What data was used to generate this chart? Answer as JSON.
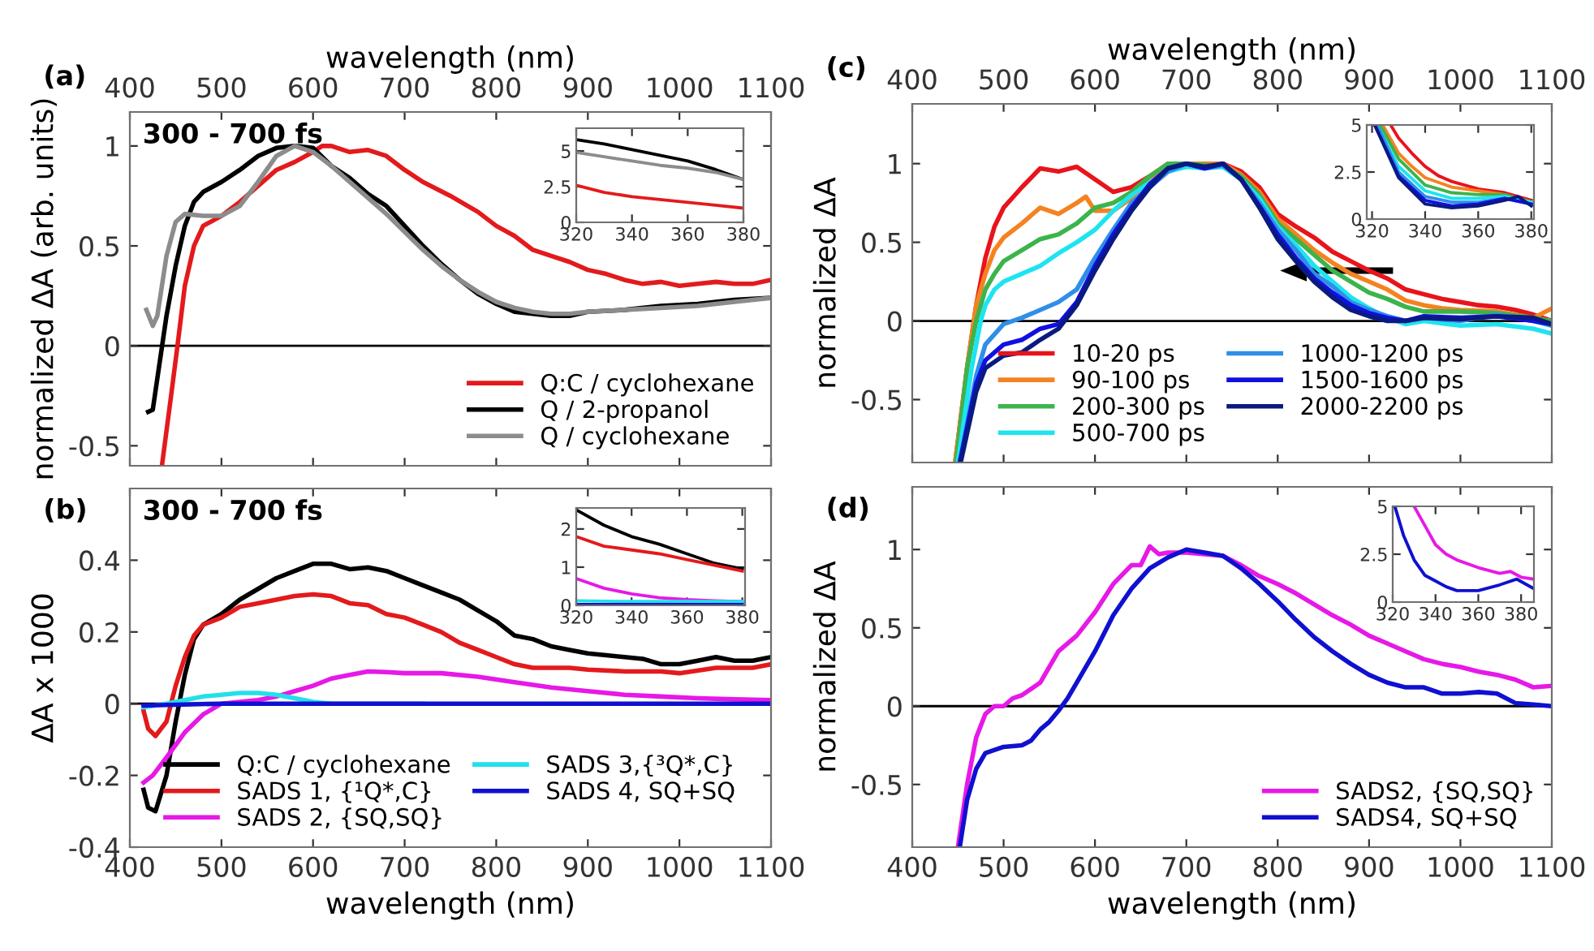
{
  "chart_data": [
    {
      "type": "line",
      "title": "(a)",
      "xlabel": "wavelength (nm)",
      "ylabel": "normalized ΔA (arb. units)",
      "xlim": [
        400,
        1100
      ],
      "xticks": [
        400,
        500,
        600,
        700,
        800,
        900,
        1000,
        1100
      ],
      "ylim": [
        -0.6,
        1.17
      ],
      "yticks": [
        -0.5,
        0,
        0.5,
        1
      ],
      "annotations": [
        "300 - 700 fs"
      ],
      "legend": "bottom right",
      "ref_lines": [
        {
          "axis": "y",
          "value": 0,
          "color": "#000000"
        }
      ],
      "series": [
        {
          "name": "Q:C / cyclohexane",
          "color": "#e31a1c",
          "x": [
            435,
            445,
            452,
            460,
            470,
            480,
            500,
            520,
            540,
            560,
            580,
            600,
            610,
            620,
            640,
            660,
            680,
            700,
            720,
            750,
            780,
            800,
            820,
            840,
            860,
            880,
            900,
            920,
            940,
            960,
            980,
            1000,
            1020,
            1040,
            1060,
            1080,
            1100
          ],
          "values": [
            -0.6,
            -0.25,
            0,
            0.3,
            0.5,
            0.6,
            0.65,
            0.72,
            0.8,
            0.88,
            0.92,
            0.97,
            1.0,
            1.0,
            0.97,
            0.98,
            0.95,
            0.88,
            0.82,
            0.75,
            0.67,
            0.6,
            0.55,
            0.48,
            0.45,
            0.42,
            0.38,
            0.36,
            0.33,
            0.31,
            0.32,
            0.3,
            0.31,
            0.32,
            0.31,
            0.31,
            0.33
          ]
        },
        {
          "name": "Q / 2-propanol",
          "color": "#000000",
          "x": [
            420,
            425,
            432,
            440,
            450,
            460,
            470,
            480,
            500,
            520,
            540,
            560,
            580,
            600,
            620,
            640,
            660,
            680,
            700,
            720,
            740,
            760,
            780,
            800,
            820,
            840,
            860,
            880,
            900,
            940,
            980,
            1020,
            1060,
            1100
          ],
          "values": [
            -0.33,
            -0.32,
            -0.1,
            0.15,
            0.4,
            0.6,
            0.72,
            0.77,
            0.82,
            0.88,
            0.95,
            0.99,
            1.0,
            0.99,
            0.9,
            0.84,
            0.76,
            0.7,
            0.6,
            0.5,
            0.41,
            0.33,
            0.26,
            0.21,
            0.17,
            0.16,
            0.15,
            0.15,
            0.17,
            0.18,
            0.2,
            0.21,
            0.23,
            0.24
          ]
        },
        {
          "name": "Q / cyclohexane",
          "color": "#8c8c8c",
          "x": [
            418,
            425,
            430,
            440,
            450,
            460,
            480,
            500,
            520,
            540,
            560,
            580,
            600,
            620,
            640,
            660,
            680,
            700,
            720,
            740,
            760,
            780,
            800,
            820,
            840,
            860,
            880,
            900,
            940,
            980,
            1020,
            1060,
            1100
          ],
          "values": [
            0.18,
            0.1,
            0.15,
            0.45,
            0.62,
            0.66,
            0.65,
            0.65,
            0.7,
            0.82,
            0.95,
            1.0,
            0.97,
            0.9,
            0.82,
            0.74,
            0.66,
            0.57,
            0.48,
            0.4,
            0.33,
            0.27,
            0.22,
            0.19,
            0.17,
            0.16,
            0.16,
            0.17,
            0.18,
            0.19,
            0.2,
            0.22,
            0.24
          ]
        }
      ]
    },
    {
      "type": "line",
      "xlim": [
        320,
        380
      ],
      "xticks": [
        320,
        340,
        360,
        380
      ],
      "ylim": [
        0,
        6.6
      ],
      "yticks": [
        0,
        2.5,
        5
      ],
      "series": [
        {
          "color": "#000000",
          "x": [
            320,
            330,
            340,
            350,
            360,
            370,
            380
          ],
          "values": [
            5.8,
            5.5,
            5.1,
            4.7,
            4.3,
            3.7,
            3.0
          ]
        },
        {
          "color": "#8c8c8c",
          "x": [
            320,
            330,
            340,
            350,
            360,
            370,
            380
          ],
          "values": [
            4.9,
            4.6,
            4.3,
            4.0,
            3.8,
            3.5,
            3.0
          ]
        },
        {
          "color": "#e31a1c",
          "x": [
            320,
            330,
            340,
            350,
            360,
            370,
            380
          ],
          "values": [
            2.6,
            2.1,
            1.8,
            1.6,
            1.4,
            1.2,
            1.0
          ]
        }
      ]
    },
    {
      "type": "line",
      "title": "(c)",
      "xlabel": "wavelength (nm)",
      "ylabel": "normalized ΔA",
      "xlim": [
        400,
        1100
      ],
      "xticks": [
        400,
        500,
        600,
        700,
        800,
        900,
        1000,
        1100
      ],
      "ylim": [
        -0.9,
        1.38
      ],
      "yticks": [
        -0.5,
        0,
        0.5,
        1
      ],
      "legend": "bottom",
      "ref_lines": [
        {
          "axis": "y",
          "value": 0,
          "color": "#000000"
        }
      ],
      "series": [
        {
          "name": "10-20 ps",
          "color": "#e8141b",
          "x": [
            447,
            460,
            470,
            480,
            490,
            500,
            520,
            540,
            560,
            580,
            600,
            620,
            640,
            660,
            680,
            700,
            720,
            740,
            760,
            780,
            800,
            820,
            840,
            860,
            880,
            900,
            920,
            940,
            960,
            980,
            1000,
            1020,
            1040,
            1060,
            1080,
            1100
          ],
          "values": [
            -0.9,
            -0.3,
            0.1,
            0.4,
            0.6,
            0.72,
            0.85,
            0.97,
            0.95,
            0.98,
            0.9,
            0.82,
            0.85,
            0.92,
            1.0,
            0.98,
            1.0,
            1.0,
            0.95,
            0.85,
            0.68,
            0.6,
            0.53,
            0.44,
            0.38,
            0.32,
            0.27,
            0.2,
            0.17,
            0.14,
            0.12,
            0.1,
            0.09,
            0.07,
            0.04,
            0.0
          ]
        },
        {
          "name": "90-100 ps",
          "color": "#f58220",
          "x": [
            447,
            460,
            470,
            480,
            490,
            500,
            520,
            540,
            560,
            580,
            590,
            600,
            620,
            640,
            660,
            680,
            700,
            720,
            740,
            760,
            780,
            800,
            820,
            840,
            860,
            880,
            900,
            920,
            940,
            960,
            980,
            1000,
            1040,
            1080,
            1100
          ],
          "values": [
            -0.9,
            -0.3,
            0.1,
            0.3,
            0.45,
            0.53,
            0.62,
            0.72,
            0.68,
            0.75,
            0.79,
            0.7,
            0.7,
            0.78,
            0.9,
            0.98,
            1.0,
            1.0,
            1.0,
            0.93,
            0.82,
            0.65,
            0.55,
            0.45,
            0.37,
            0.3,
            0.25,
            0.2,
            0.13,
            0.1,
            0.08,
            0.07,
            0.06,
            0.02,
            0.08
          ]
        },
        {
          "name": "200-300 ps",
          "color": "#3cb44b",
          "x": [
            448,
            460,
            470,
            480,
            490,
            500,
            520,
            540,
            560,
            580,
            600,
            620,
            640,
            660,
            680,
            700,
            720,
            740,
            760,
            780,
            800,
            820,
            840,
            860,
            880,
            900,
            920,
            940,
            960,
            1000,
            1040,
            1080,
            1100
          ],
          "values": [
            -0.9,
            -0.3,
            0.0,
            0.2,
            0.3,
            0.38,
            0.45,
            0.52,
            0.55,
            0.62,
            0.72,
            0.75,
            0.82,
            0.92,
            1.0,
            1.0,
            0.99,
            0.98,
            0.92,
            0.8,
            0.62,
            0.52,
            0.42,
            0.32,
            0.25,
            0.18,
            0.14,
            0.09,
            0.06,
            0.06,
            0.05,
            0.02,
            0.0
          ]
        },
        {
          "name": "500-700 ps",
          "color": "#1ee4f0",
          "x": [
            450,
            465,
            475,
            480,
            490,
            500,
            520,
            540,
            560,
            580,
            600,
            620,
            640,
            660,
            680,
            700,
            720,
            740,
            760,
            780,
            800,
            820,
            840,
            860,
            880,
            900,
            920,
            940,
            960,
            1000,
            1040,
            1080,
            1100
          ],
          "values": [
            -0.9,
            -0.3,
            0.0,
            0.1,
            0.2,
            0.25,
            0.3,
            0.35,
            0.43,
            0.5,
            0.58,
            0.7,
            0.8,
            0.88,
            0.95,
            0.98,
            0.97,
            0.98,
            0.9,
            0.78,
            0.6,
            0.48,
            0.35,
            0.25,
            0.15,
            0.08,
            0.02,
            -0.02,
            0.0,
            -0.03,
            -0.02,
            -0.05,
            -0.08
          ]
        },
        {
          "name": "1000-1200 ps",
          "color": "#2f8fe8",
          "x": [
            452,
            470,
            480,
            500,
            520,
            540,
            560,
            580,
            600,
            620,
            640,
            660,
            680,
            700,
            720,
            740,
            760,
            780,
            800,
            820,
            840,
            860,
            880,
            900,
            920,
            940,
            960,
            1000,
            1040,
            1080,
            1100
          ],
          "values": [
            -0.9,
            -0.35,
            -0.15,
            -0.02,
            0.02,
            0.07,
            0.12,
            0.2,
            0.4,
            0.58,
            0.75,
            0.85,
            0.95,
            1.0,
            0.97,
            0.99,
            0.9,
            0.75,
            0.58,
            0.45,
            0.3,
            0.22,
            0.12,
            0.07,
            0.03,
            0.0,
            0.02,
            0.0,
            0.04,
            0.0,
            -0.03
          ]
        },
        {
          "name": "1500-1600 ps",
          "color": "#1010e0",
          "x": [
            452,
            470,
            480,
            500,
            520,
            540,
            560,
            580,
            600,
            620,
            640,
            660,
            680,
            700,
            720,
            740,
            760,
            780,
            800,
            820,
            840,
            860,
            880,
            900,
            920,
            940,
            960,
            1000,
            1040,
            1080,
            1100
          ],
          "values": [
            -0.9,
            -0.4,
            -0.25,
            -0.15,
            -0.12,
            -0.05,
            -0.02,
            0.12,
            0.35,
            0.55,
            0.72,
            0.87,
            0.97,
            1.0,
            0.97,
            1.0,
            0.9,
            0.73,
            0.55,
            0.4,
            0.27,
            0.18,
            0.1,
            0.05,
            0.02,
            0.0,
            0.03,
            0.02,
            0.03,
            0.0,
            -0.02
          ]
        },
        {
          "name": "2000-2200 ps",
          "color": "#0a1a80",
          "x": [
            453,
            470,
            480,
            500,
            520,
            540,
            560,
            580,
            600,
            620,
            640,
            660,
            680,
            700,
            720,
            740,
            760,
            780,
            800,
            820,
            840,
            860,
            880,
            900,
            920,
            940,
            960,
            1000,
            1040,
            1080,
            1100
          ],
          "values": [
            -0.9,
            -0.45,
            -0.3,
            -0.22,
            -0.2,
            -0.12,
            -0.05,
            0.1,
            0.32,
            0.52,
            0.7,
            0.85,
            0.97,
            1.0,
            0.98,
            1.0,
            0.9,
            0.72,
            0.52,
            0.38,
            0.25,
            0.15,
            0.07,
            0.03,
            0.0,
            0.0,
            0.02,
            0.01,
            0.03,
            0.02,
            -0.02
          ]
        }
      ]
    },
    {
      "type": "line",
      "xlim": [
        318,
        381
      ],
      "xticks": [
        320,
        340,
        360,
        380
      ],
      "ylim": [
        0,
        5
      ],
      "yticks": [
        0,
        2.5,
        5
      ],
      "series": [
        {
          "color": "#e8141b",
          "x": [
            327,
            330,
            335,
            340,
            345,
            350,
            360,
            370,
            380
          ],
          "values": [
            5,
            4.3,
            3.5,
            2.8,
            2.3,
            2.0,
            1.6,
            1.4,
            1.0
          ]
        },
        {
          "color": "#f58220",
          "x": [
            324,
            330,
            335,
            340,
            350,
            360,
            370,
            380
          ],
          "values": [
            5,
            3.5,
            2.8,
            2.2,
            1.7,
            1.5,
            1.3,
            0.9
          ]
        },
        {
          "color": "#3cb44b",
          "x": [
            323,
            330,
            340,
            350,
            360,
            370,
            380
          ],
          "values": [
            5,
            3.2,
            1.8,
            1.4,
            1.3,
            1.3,
            0.9
          ]
        },
        {
          "color": "#1ee4f0",
          "x": [
            322,
            330,
            340,
            350,
            360,
            370,
            380
          ],
          "values": [
            5,
            2.8,
            1.5,
            1.1,
            1.1,
            1.2,
            0.9
          ]
        },
        {
          "color": "#2f8fe8",
          "x": [
            322,
            330,
            340,
            350,
            360,
            370,
            380
          ],
          "values": [
            5,
            2.5,
            1.2,
            0.9,
            0.9,
            1.1,
            0.8
          ]
        },
        {
          "color": "#1010e0",
          "x": [
            321,
            330,
            340,
            350,
            360,
            370,
            380
          ],
          "values": [
            5,
            2.3,
            1.0,
            0.7,
            0.8,
            1.1,
            0.8
          ]
        },
        {
          "color": "#0a1a80",
          "x": [
            321,
            330,
            340,
            350,
            360,
            370,
            375,
            380
          ],
          "values": [
            5,
            2.2,
            0.8,
            0.6,
            0.7,
            1.0,
            1.2,
            0.7
          ]
        }
      ]
    },
    {
      "type": "line",
      "title": "(b)",
      "xlabel": "wavelength (nm)",
      "ylabel": "ΔA x 1000",
      "xlim": [
        400,
        1100
      ],
      "xticks": [
        400,
        500,
        600,
        700,
        800,
        900,
        1000,
        1100
      ],
      "ylim": [
        -0.4,
        0.6
      ],
      "yticks": [
        -0.4,
        -0.2,
        0,
        0.2,
        0.4
      ],
      "annotations": [
        "300 - 700 fs"
      ],
      "legend": "bottom",
      "ref_lines": [
        {
          "axis": "y",
          "value": 0,
          "color": "#000000"
        }
      ],
      "series": [
        {
          "name": "Q:C / cyclohexane",
          "color": "#000000",
          "x": [
            415,
            420,
            428,
            440,
            450,
            460,
            470,
            480,
            500,
            520,
            540,
            560,
            580,
            600,
            620,
            640,
            660,
            680,
            700,
            720,
            740,
            760,
            780,
            800,
            820,
            840,
            860,
            880,
            900,
            920,
            940,
            960,
            980,
            1000,
            1020,
            1040,
            1060,
            1080,
            1100
          ],
          "values": [
            -0.24,
            -0.29,
            -0.3,
            -0.2,
            -0.05,
            0.08,
            0.18,
            0.22,
            0.25,
            0.29,
            0.32,
            0.35,
            0.37,
            0.39,
            0.39,
            0.375,
            0.38,
            0.37,
            0.35,
            0.33,
            0.31,
            0.29,
            0.26,
            0.23,
            0.19,
            0.18,
            0.16,
            0.15,
            0.14,
            0.135,
            0.13,
            0.125,
            0.11,
            0.11,
            0.12,
            0.13,
            0.12,
            0.12,
            0.13
          ]
        },
        {
          "name": "SADS 1, {¹Q*,C}",
          "color": "#e31a1c",
          "x": [
            415,
            420,
            428,
            440,
            450,
            460,
            470,
            480,
            500,
            520,
            540,
            560,
            580,
            600,
            620,
            640,
            660,
            680,
            700,
            720,
            740,
            760,
            780,
            800,
            820,
            840,
            860,
            880,
            900,
            940,
            980,
            1000,
            1040,
            1080,
            1100
          ],
          "values": [
            -0.02,
            -0.07,
            -0.09,
            -0.05,
            0.05,
            0.13,
            0.19,
            0.22,
            0.24,
            0.27,
            0.28,
            0.29,
            0.3,
            0.305,
            0.3,
            0.28,
            0.275,
            0.25,
            0.24,
            0.22,
            0.2,
            0.17,
            0.15,
            0.13,
            0.11,
            0.1,
            0.1,
            0.1,
            0.095,
            0.09,
            0.09,
            0.085,
            0.1,
            0.1,
            0.11
          ]
        },
        {
          "name": "SADS 2, {SQ,SQ}",
          "color": "#e619e6",
          "x": [
            415,
            425,
            440,
            460,
            480,
            500,
            520,
            540,
            560,
            580,
            600,
            620,
            640,
            660,
            680,
            700,
            740,
            780,
            820,
            860,
            900,
            940,
            980,
            1020,
            1060,
            1100
          ],
          "values": [
            -0.22,
            -0.2,
            -0.15,
            -0.08,
            -0.03,
            0.0,
            0.005,
            0.01,
            0.02,
            0.035,
            0.05,
            0.07,
            0.08,
            0.09,
            0.088,
            0.085,
            0.085,
            0.075,
            0.06,
            0.045,
            0.035,
            0.025,
            0.02,
            0.015,
            0.012,
            0.01
          ]
        },
        {
          "name": "SADS 3,{³Q*,C}",
          "color": "#22e0e8",
          "x": [
            415,
            440,
            460,
            480,
            500,
            520,
            540,
            560,
            580,
            600,
            620,
            660,
            720
          ],
          "values": [
            -0.01,
            0.0,
            0.01,
            0.02,
            0.025,
            0.03,
            0.03,
            0.025,
            0.015,
            0.005,
            0.0,
            0.0,
            0.0
          ]
        },
        {
          "name": "SADS 4, SQ+SQ",
          "color": "#1010d0",
          "x": [
            415,
            500,
            600,
            700,
            800,
            900,
            1000,
            1100
          ],
          "values": [
            -0.005,
            0.0,
            0.0,
            0.0,
            0.0,
            0.0,
            0.0,
            0.0
          ]
        }
      ]
    },
    {
      "type": "line",
      "xlim": [
        320,
        381
      ],
      "xticks": [
        320,
        340,
        360,
        380
      ],
      "ylim": [
        0,
        2.55
      ],
      "yticks": [
        0,
        1,
        2
      ],
      "series": [
        {
          "color": "#000000",
          "x": [
            320,
            330,
            340,
            350,
            360,
            370,
            380
          ],
          "values": [
            2.5,
            2.1,
            1.8,
            1.6,
            1.35,
            1.1,
            0.95
          ]
        },
        {
          "color": "#e31a1c",
          "x": [
            320,
            330,
            340,
            350,
            360,
            370,
            380
          ],
          "values": [
            1.8,
            1.55,
            1.45,
            1.35,
            1.2,
            1.05,
            0.9
          ]
        },
        {
          "color": "#e619e6",
          "x": [
            320,
            330,
            340,
            350,
            360,
            370,
            380
          ],
          "values": [
            0.7,
            0.45,
            0.3,
            0.2,
            0.15,
            0.12,
            0.1
          ]
        },
        {
          "color": "#22e0e8",
          "x": [
            320,
            340,
            360,
            380
          ],
          "values": [
            0.12,
            0.1,
            0.1,
            0.1
          ]
        },
        {
          "color": "#1010d0",
          "x": [
            320,
            380
          ],
          "values": [
            0.02,
            0.02
          ]
        }
      ]
    },
    {
      "type": "line",
      "title": "(d)",
      "xlabel": "wavelength (nm)",
      "ylabel": "normalized ΔA",
      "xlim": [
        400,
        1100
      ],
      "xticks": [
        400,
        500,
        600,
        700,
        800,
        900,
        1000,
        1100
      ],
      "ylim": [
        -0.9,
        1.4
      ],
      "yticks": [
        -0.5,
        0,
        0.5,
        1
      ],
      "legend": "bottom right",
      "ref_lines": [
        {
          "axis": "y",
          "value": 0,
          "color": "#000000"
        }
      ],
      "series": [
        {
          "name": "SADS2, {SQ,SQ}",
          "color": "#e619e6",
          "x": [
            450,
            460,
            470,
            480,
            490,
            500,
            510,
            520,
            540,
            560,
            580,
            600,
            620,
            640,
            650,
            660,
            670,
            680,
            700,
            720,
            740,
            760,
            780,
            800,
            820,
            840,
            860,
            880,
            900,
            920,
            940,
            960,
            980,
            1000,
            1020,
            1040,
            1060,
            1080,
            1100
          ],
          "values": [
            -0.9,
            -0.5,
            -0.2,
            -0.05,
            0.0,
            0.0,
            0.05,
            0.07,
            0.15,
            0.35,
            0.45,
            0.6,
            0.78,
            0.9,
            0.9,
            1.02,
            0.97,
            0.98,
            0.98,
            0.97,
            0.96,
            0.9,
            0.83,
            0.78,
            0.72,
            0.65,
            0.58,
            0.52,
            0.45,
            0.4,
            0.35,
            0.3,
            0.27,
            0.25,
            0.22,
            0.2,
            0.17,
            0.12,
            0.13
          ]
        },
        {
          "name": "SADS4, SQ+SQ",
          "color": "#1010d0",
          "x": [
            452,
            460,
            470,
            480,
            500,
            520,
            530,
            540,
            550,
            560,
            570,
            580,
            600,
            620,
            640,
            660,
            680,
            700,
            720,
            740,
            760,
            780,
            800,
            820,
            840,
            860,
            880,
            900,
            920,
            940,
            960,
            980,
            1000,
            1020,
            1040,
            1060,
            1080,
            1100
          ],
          "values": [
            -0.9,
            -0.6,
            -0.4,
            -0.3,
            -0.26,
            -0.25,
            -0.22,
            -0.15,
            -0.1,
            -0.03,
            0.05,
            0.15,
            0.35,
            0.58,
            0.75,
            0.88,
            0.95,
            1.0,
            0.98,
            0.96,
            0.88,
            0.78,
            0.67,
            0.55,
            0.44,
            0.35,
            0.27,
            0.2,
            0.15,
            0.12,
            0.12,
            0.08,
            0.08,
            0.09,
            0.08,
            0.02,
            0.01,
            0.0
          ]
        }
      ]
    },
    {
      "type": "line",
      "xlim": [
        320,
        386
      ],
      "xticks": [
        320,
        340,
        360,
        380
      ],
      "ylim": [
        0,
        5
      ],
      "yticks": [
        0,
        2.5,
        5
      ],
      "series": [
        {
          "color": "#e619e6",
          "x": [
            330,
            335,
            340,
            345,
            350,
            360,
            370,
            375,
            380,
            386
          ],
          "values": [
            5,
            4.0,
            3.0,
            2.5,
            2.2,
            1.8,
            1.5,
            1.6,
            1.3,
            1.2
          ]
        },
        {
          "color": "#1010d0",
          "x": [
            321,
            325,
            330,
            335,
            340,
            345,
            350,
            360,
            370,
            378,
            386
          ],
          "values": [
            5,
            3.5,
            2.2,
            1.4,
            1.1,
            0.8,
            0.6,
            0.6,
            0.9,
            1.2,
            0.7
          ]
        }
      ]
    }
  ]
}
